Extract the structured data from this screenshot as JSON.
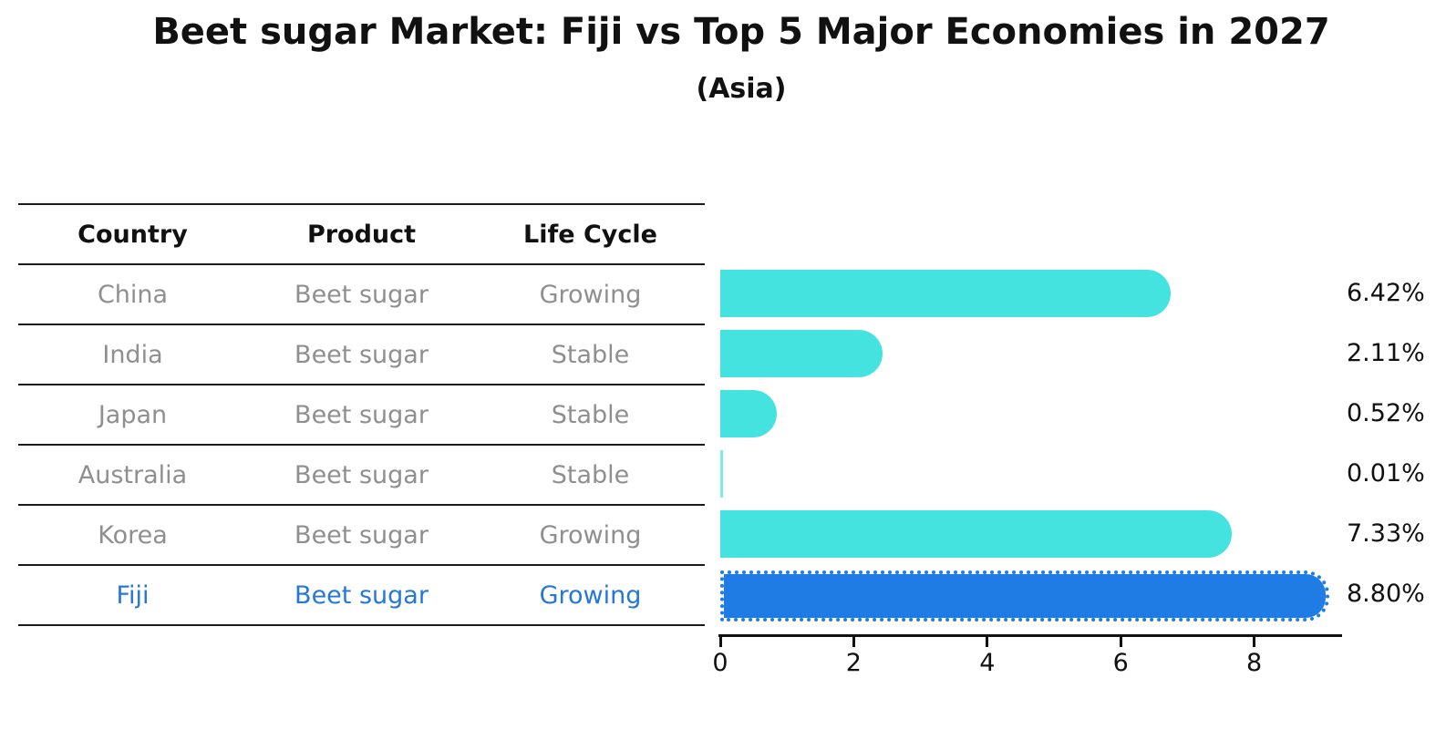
{
  "title": "Beet sugar Market: Fiji vs Top 5 Major Economies in 2027",
  "subtitle": "(Asia)",
  "table": {
    "headers": [
      "Country",
      "Product",
      "Life Cycle"
    ],
    "rows": [
      {
        "country": "China",
        "product": "Beet sugar",
        "life_cycle": "Growing",
        "highlight": false
      },
      {
        "country": "India",
        "product": "Beet sugar",
        "life_cycle": "Stable",
        "highlight": false
      },
      {
        "country": "Japan",
        "product": "Beet sugar",
        "life_cycle": "Stable",
        "highlight": false
      },
      {
        "country": "Australia",
        "product": "Beet sugar",
        "life_cycle": "Stable",
        "highlight": false
      },
      {
        "country": "Korea",
        "product": "Beet sugar",
        "life_cycle": "Growing",
        "highlight": false
      },
      {
        "country": "Fiji",
        "product": "Beet sugar",
        "life_cycle": "Growing",
        "highlight": true
      }
    ]
  },
  "chart_data": {
    "type": "bar",
    "orientation": "horizontal",
    "title": "Beet sugar Market: Fiji vs Top 5 Major Economies in 2027",
    "subtitle": "(Asia)",
    "categories": [
      "China",
      "India",
      "Japan",
      "Australia",
      "Korea",
      "Fiji"
    ],
    "values": [
      6.42,
      2.11,
      0.52,
      0.01,
      7.33,
      8.8
    ],
    "value_labels": [
      "6.42%",
      "2.11%",
      "0.52%",
      "0.01%",
      "7.33%",
      "8.80%"
    ],
    "highlight_index": 5,
    "xlim": [
      0,
      9.3
    ],
    "xticks": [
      0,
      2,
      4,
      6,
      8
    ],
    "grid": false,
    "legend": false
  },
  "colors": {
    "bar": "#44e3df",
    "highlight_bar": "#1e7ce4",
    "highlight_text": "#2577d8",
    "table_text": "#8f8f8f",
    "heading_text": "#111111",
    "axis": "#111111"
  }
}
